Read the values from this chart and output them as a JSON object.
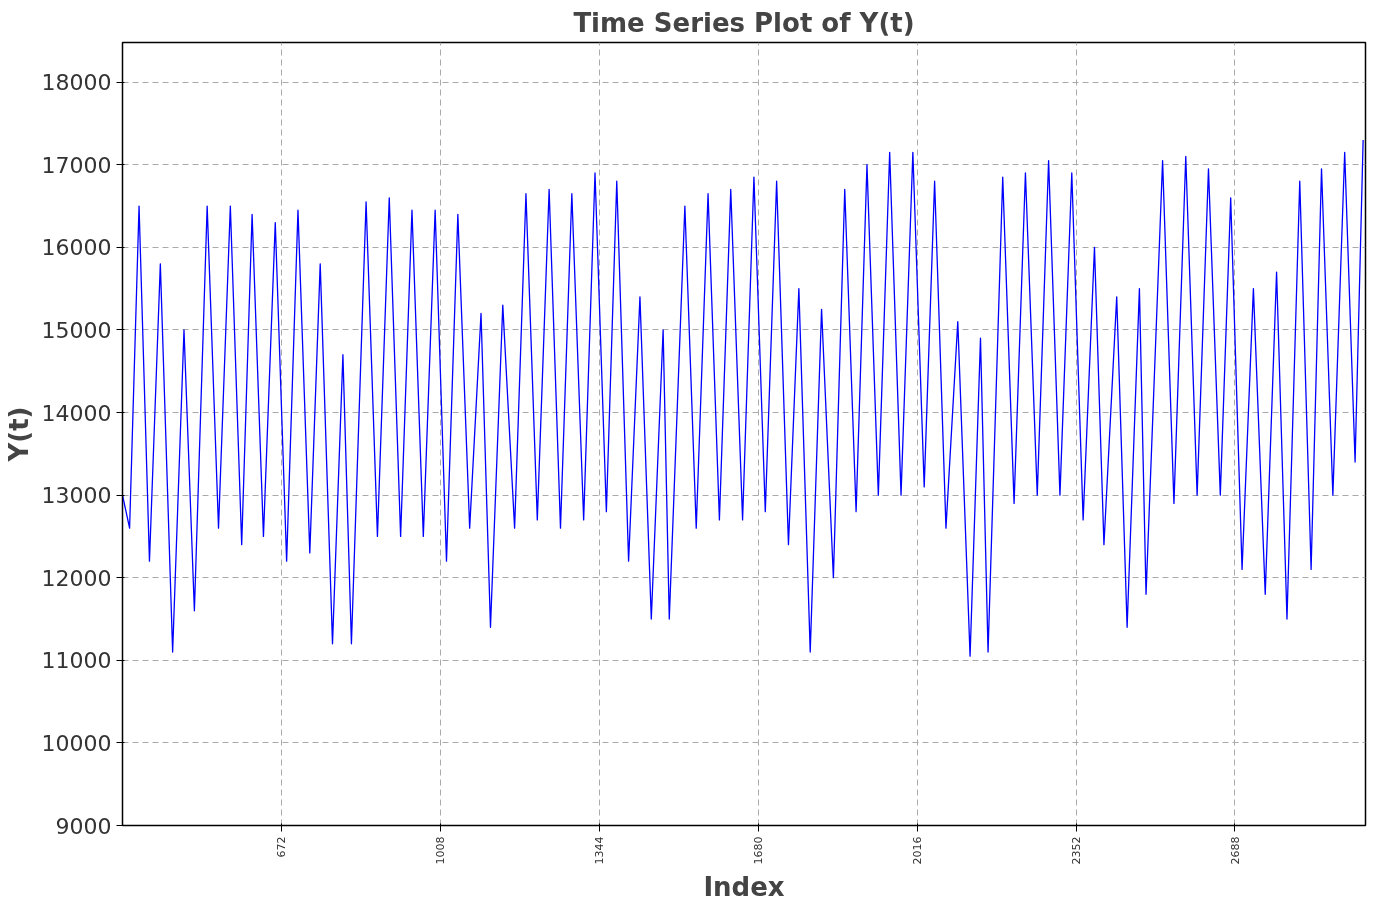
{
  "chart_data": {
    "type": "line",
    "title": "Time Series Plot of Y(t)",
    "xlabel": "Index",
    "ylabel": "Y(t)",
    "xlim": [
      336,
      2964
    ],
    "ylim": [
      9000,
      18480
    ],
    "xticks": [
      672,
      1008,
      1344,
      1680,
      2016,
      2352,
      2688
    ],
    "yticks": [
      9000,
      10000,
      11000,
      12000,
      13000,
      14000,
      15000,
      16000,
      17000,
      18000
    ],
    "grid": true,
    "line_style": "solid",
    "marker": "none",
    "series": [
      {
        "color": "#0000ff",
        "x": [
          336,
          351,
          371,
          393,
          416,
          442,
          466,
          488,
          515,
          539,
          564,
          588,
          610,
          634,
          659,
          683,
          707,
          732,
          754,
          780,
          802,
          820,
          851,
          875,
          900,
          924,
          948,
          972,
          997,
          1021,
          1045,
          1070,
          1094,
          1114,
          1140,
          1165,
          1189,
          1213,
          1238,
          1262,
          1286,
          1311,
          1335,
          1359,
          1381,
          1406,
          1430,
          1454,
          1479,
          1492,
          1525,
          1549,
          1574,
          1598,
          1622,
          1647,
          1671,
          1695,
          1719,
          1744,
          1766,
          1790,
          1814,
          1839,
          1863,
          1887,
          1910,
          1934,
          1958,
          1982,
          2007,
          2031,
          2053,
          2077,
          2102,
          2128,
          2150,
          2166,
          2197,
          2221,
          2245,
          2270,
          2294,
          2318,
          2343,
          2367,
          2391,
          2411,
          2438,
          2460,
          2486,
          2500,
          2535,
          2559,
          2584,
          2608,
          2632,
          2657,
          2679,
          2703,
          2727,
          2752,
          2776,
          2798,
          2825,
          2849,
          2871,
          2895,
          2920,
          2942,
          2959
        ],
        "values": [
          13000,
          12600,
          16500,
          12200,
          15800,
          11100,
          15000,
          11600,
          16500,
          12600,
          16500,
          12400,
          16400,
          12500,
          16300,
          12200,
          16450,
          12300,
          15800,
          11200,
          14700,
          11200,
          16550,
          12500,
          16600,
          12500,
          16450,
          12500,
          16450,
          12200,
          16400,
          12600,
          15200,
          11400,
          15300,
          12600,
          16650,
          12700,
          16700,
          12600,
          16650,
          12700,
          16900,
          12800,
          16800,
          12200,
          15400,
          11500,
          15000,
          11500,
          16500,
          12600,
          16650,
          12700,
          16700,
          12700,
          16850,
          12800,
          16800,
          12400,
          15500,
          11100,
          15250,
          12000,
          16700,
          12800,
          17000,
          13000,
          17150,
          13000,
          17150,
          13100,
          16800,
          12600,
          15100,
          11050,
          14900,
          11100,
          16850,
          12900,
          16900,
          13000,
          17050,
          13000,
          16900,
          12700,
          16000,
          12400,
          15400,
          11400,
          15500,
          11800,
          17050,
          12900,
          17100,
          13000,
          16950,
          13000,
          16600,
          12100,
          15500,
          11800,
          15700,
          11500,
          16800,
          12100,
          16950,
          13000,
          17150,
          13400,
          17300
        ]
      }
    ]
  }
}
